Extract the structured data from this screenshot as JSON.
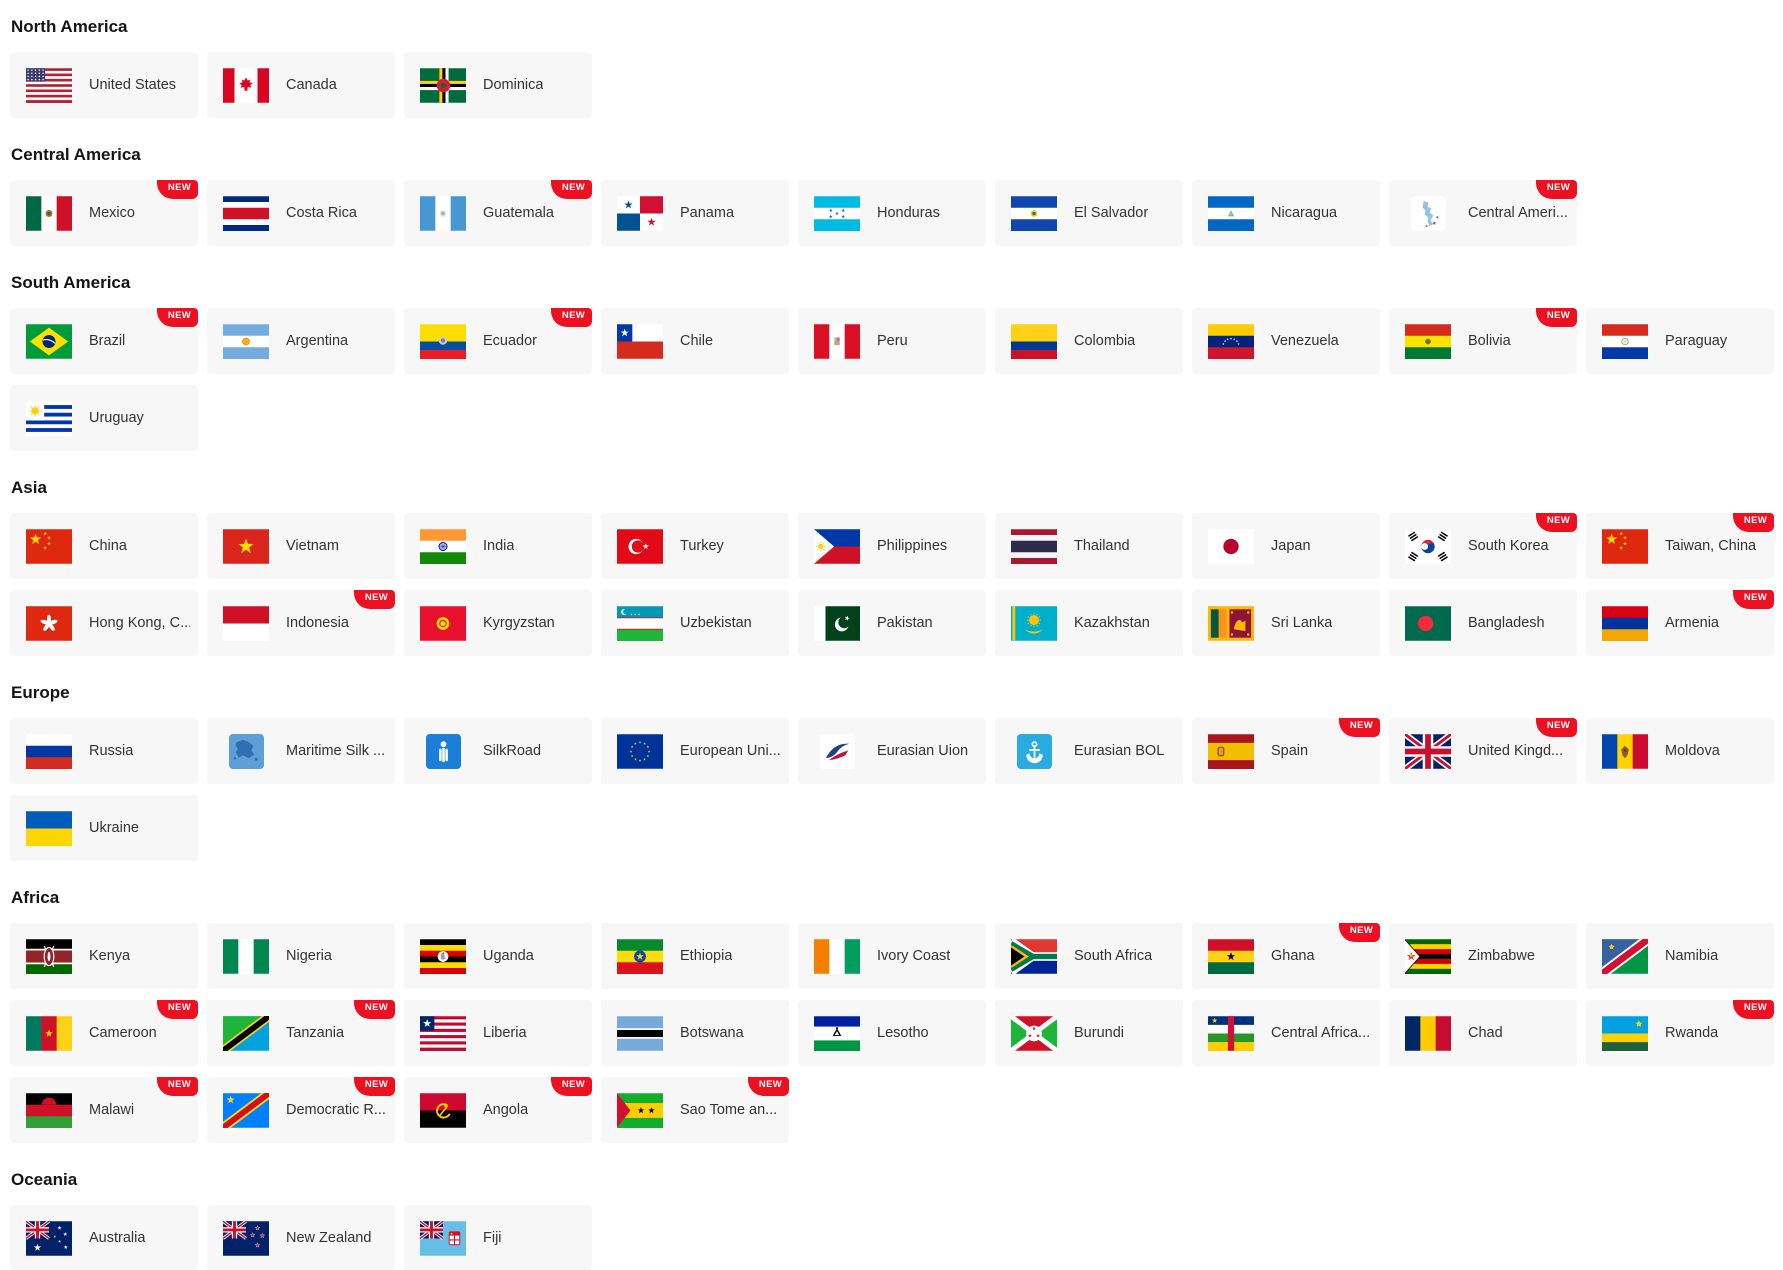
{
  "badge": {
    "label": "NEW",
    "color": "#ec1021"
  },
  "card_bg": "#f7f7f7",
  "sections": [
    {
      "title": "North America",
      "items": [
        {
          "label": "United States",
          "flag": "us"
        },
        {
          "label": "Canada",
          "flag": "ca"
        },
        {
          "label": "Dominica",
          "flag": "dm"
        }
      ]
    },
    {
      "title": "Central America",
      "items": [
        {
          "label": "Mexico",
          "flag": "mx",
          "new": true
        },
        {
          "label": "Costa Rica",
          "flag": "cr"
        },
        {
          "label": "Guatemala",
          "flag": "gt",
          "new": true
        },
        {
          "label": "Panama",
          "flag": "pa"
        },
        {
          "label": "Honduras",
          "flag": "hn"
        },
        {
          "label": "El Salvador",
          "flag": "sv"
        },
        {
          "label": "Nicaragua",
          "flag": "ni"
        },
        {
          "label": "Central Ameri...",
          "flag": "camap",
          "new": true
        }
      ]
    },
    {
      "title": "South America",
      "items": [
        {
          "label": "Brazil",
          "flag": "br",
          "new": true
        },
        {
          "label": "Argentina",
          "flag": "ar"
        },
        {
          "label": "Ecuador",
          "flag": "ec",
          "new": true
        },
        {
          "label": "Chile",
          "flag": "cl"
        },
        {
          "label": "Peru",
          "flag": "pe"
        },
        {
          "label": "Colombia",
          "flag": "co"
        },
        {
          "label": "Venezuela",
          "flag": "ve"
        },
        {
          "label": "Bolivia",
          "flag": "bo",
          "new": true
        },
        {
          "label": "Paraguay",
          "flag": "py"
        },
        {
          "label": "Uruguay",
          "flag": "uy"
        }
      ]
    },
    {
      "title": "Asia",
      "items": [
        {
          "label": "China",
          "flag": "cn"
        },
        {
          "label": "Vietnam",
          "flag": "vn"
        },
        {
          "label": "India",
          "flag": "in"
        },
        {
          "label": "Turkey",
          "flag": "tr"
        },
        {
          "label": "Philippines",
          "flag": "ph"
        },
        {
          "label": "Thailand",
          "flag": "th"
        },
        {
          "label": "Japan",
          "flag": "jp"
        },
        {
          "label": "South Korea",
          "flag": "kr",
          "new": true
        },
        {
          "label": "Taiwan, China",
          "flag": "tw",
          "new": true
        },
        {
          "label": "Hong Kong, C...",
          "flag": "hk"
        },
        {
          "label": "Indonesia",
          "flag": "id",
          "new": true
        },
        {
          "label": "Kyrgyzstan",
          "flag": "kg"
        },
        {
          "label": "Uzbekistan",
          "flag": "uz"
        },
        {
          "label": "Pakistan",
          "flag": "pk"
        },
        {
          "label": "Kazakhstan",
          "flag": "kz"
        },
        {
          "label": "Sri Lanka",
          "flag": "lk"
        },
        {
          "label": "Bangladesh",
          "flag": "bd"
        },
        {
          "label": "Armenia",
          "flag": "am",
          "new": true
        }
      ]
    },
    {
      "title": "Europe",
      "items": [
        {
          "label": "Russia",
          "flag": "ru"
        },
        {
          "label": "Maritime Silk ...",
          "flag": "msilk"
        },
        {
          "label": "SilkRoad",
          "flag": "silkroad"
        },
        {
          "label": "European Uni...",
          "flag": "eu"
        },
        {
          "label": "Eurasian Uion",
          "flag": "euasun"
        },
        {
          "label": "Eurasian BOL",
          "flag": "eubol"
        },
        {
          "label": "Spain",
          "flag": "es",
          "new": true
        },
        {
          "label": "United Kingd...",
          "flag": "gb",
          "new": true
        },
        {
          "label": "Moldova",
          "flag": "md"
        },
        {
          "label": "Ukraine",
          "flag": "ua"
        }
      ]
    },
    {
      "title": "Africa",
      "items": [
        {
          "label": "Kenya",
          "flag": "ke"
        },
        {
          "label": "Nigeria",
          "flag": "ng"
        },
        {
          "label": "Uganda",
          "flag": "ug"
        },
        {
          "label": "Ethiopia",
          "flag": "et"
        },
        {
          "label": "Ivory Coast",
          "flag": "ci"
        },
        {
          "label": "South Africa",
          "flag": "za"
        },
        {
          "label": "Ghana",
          "flag": "gh",
          "new": true
        },
        {
          "label": "Zimbabwe",
          "flag": "zw"
        },
        {
          "label": "Namibia",
          "flag": "na"
        },
        {
          "label": "Cameroon",
          "flag": "cm",
          "new": true
        },
        {
          "label": "Tanzania",
          "flag": "tz",
          "new": true
        },
        {
          "label": "Liberia",
          "flag": "lr"
        },
        {
          "label": "Botswana",
          "flag": "bw"
        },
        {
          "label": "Lesotho",
          "flag": "ls"
        },
        {
          "label": "Burundi",
          "flag": "bi"
        },
        {
          "label": "Central Africa...",
          "flag": "cf"
        },
        {
          "label": "Chad",
          "flag": "td"
        },
        {
          "label": "Rwanda",
          "flag": "rw",
          "new": true
        },
        {
          "label": "Malawi",
          "flag": "mw",
          "new": true
        },
        {
          "label": "Democratic R...",
          "flag": "cd",
          "new": true
        },
        {
          "label": "Angola",
          "flag": "ao",
          "new": true
        },
        {
          "label": "Sao Tome an...",
          "flag": "st",
          "new": true
        }
      ]
    },
    {
      "title": "Oceania",
      "items": [
        {
          "label": "Australia",
          "flag": "au"
        },
        {
          "label": "New Zealand",
          "flag": "nz"
        },
        {
          "label": "Fiji",
          "flag": "fj"
        }
      ]
    }
  ]
}
